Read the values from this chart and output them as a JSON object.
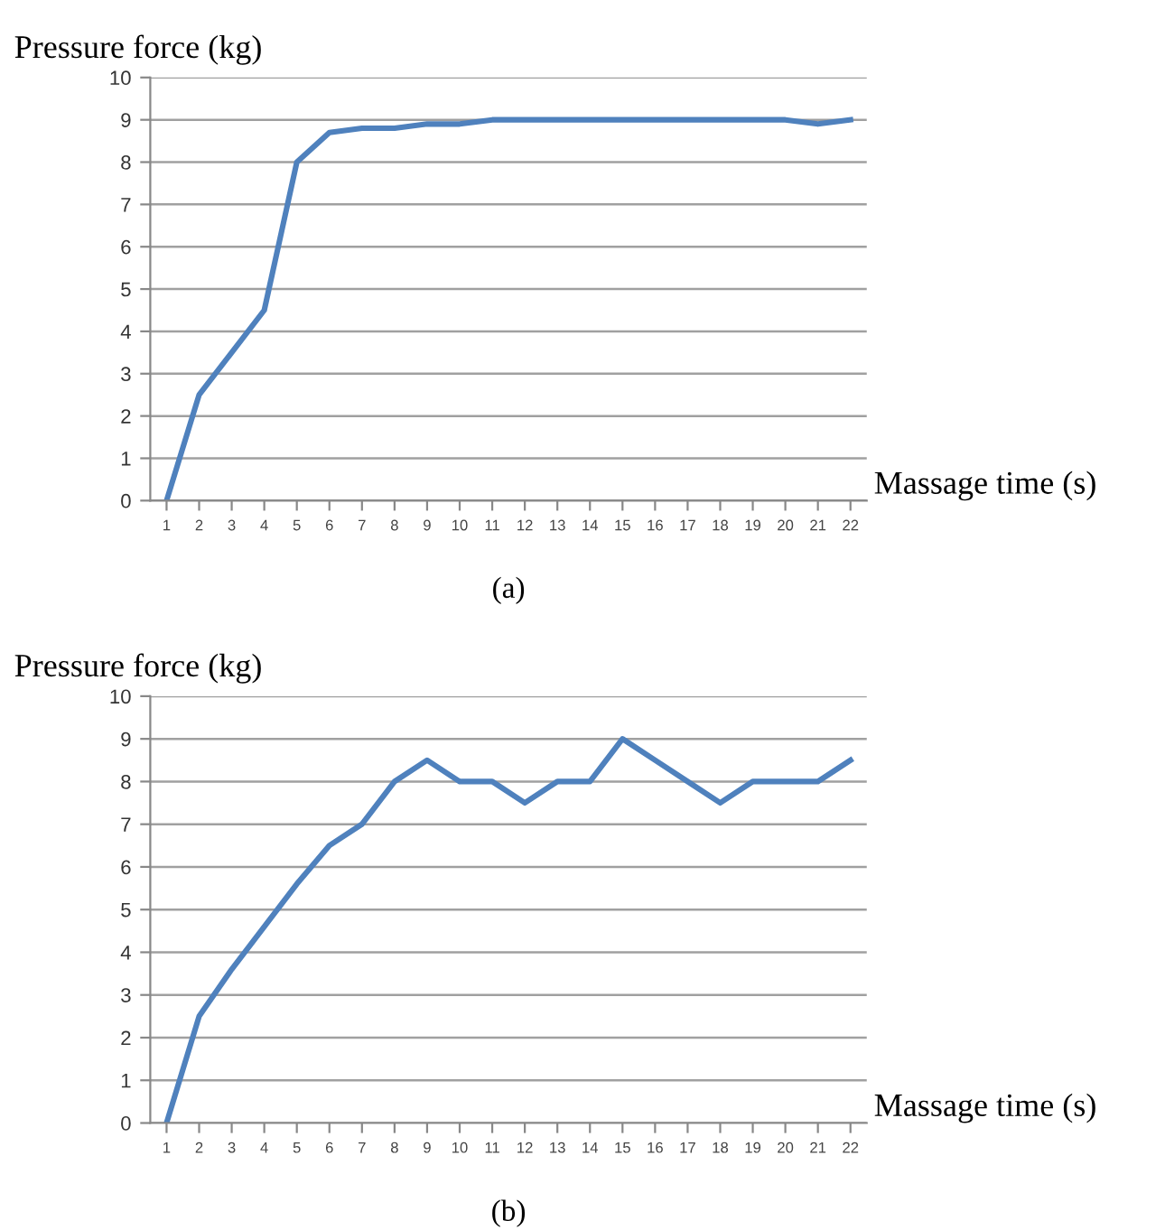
{
  "chart_data": [
    {
      "type": "line",
      "xlabel": "Massage time (s)",
      "ylabel": "Pressure force (kg)",
      "annotations": [
        "(a)"
      ],
      "categories": [
        "1",
        "2",
        "3",
        "4",
        "5",
        "6",
        "7",
        "8",
        "9",
        "10",
        "11",
        "12",
        "13",
        "14",
        "15",
        "16",
        "17",
        "18",
        "19",
        "20",
        "21",
        "22"
      ],
      "series": [
        {
          "color": "#4f81bd",
          "values": [
            0,
            2.5,
            3.5,
            4.5,
            8,
            8.7,
            8.8,
            8.8,
            8.9,
            8.9,
            9,
            9,
            9,
            9,
            9,
            9,
            9,
            9,
            9,
            9,
            8.9,
            9
          ]
        }
      ],
      "ylim": [
        0,
        10
      ],
      "yticks": [
        0,
        1,
        2,
        3,
        4,
        5,
        6,
        7,
        8,
        9,
        10
      ],
      "grid": "y",
      "marker": "none",
      "line_style": "solid"
    },
    {
      "type": "line",
      "xlabel": "Massage time (s)",
      "ylabel": "Pressure force (kg)",
      "annotations": [
        "(b)"
      ],
      "categories": [
        "1",
        "2",
        "3",
        "4",
        "5",
        "6",
        "7",
        "8",
        "9",
        "10",
        "11",
        "12",
        "13",
        "14",
        "15",
        "16",
        "17",
        "18",
        "19",
        "20",
        "21",
        "22"
      ],
      "series": [
        {
          "color": "#4f81bd",
          "values": [
            0,
            2.5,
            3.6,
            4.6,
            5.6,
            6.5,
            7,
            8,
            8.5,
            8,
            8,
            7.5,
            8,
            8,
            9,
            8.5,
            8,
            7.5,
            8,
            8,
            8,
            8.5
          ]
        }
      ],
      "ylim": [
        0,
        10
      ],
      "yticks": [
        0,
        1,
        2,
        3,
        4,
        5,
        6,
        7,
        8,
        9,
        10
      ],
      "grid": "y",
      "marker": "none",
      "line_style": "solid"
    }
  ]
}
